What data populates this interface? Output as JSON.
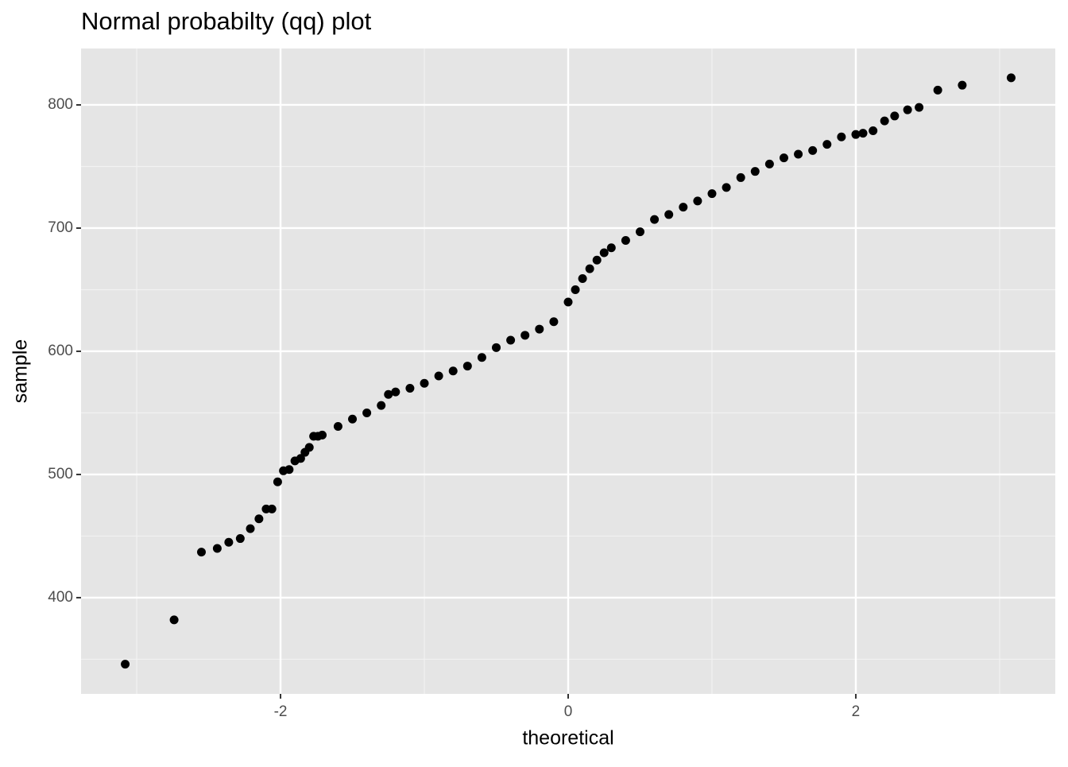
{
  "chart_data": {
    "type": "scatter",
    "title": "Normal probabilty (qq) plot",
    "x_label": "theoretical",
    "y_label": "sample",
    "color": "#000000",
    "x": [
      -3.08,
      -2.74,
      -2.55,
      -2.44,
      -2.36,
      -2.28,
      -2.21,
      -2.15,
      -2.1,
      -2.06,
      -2.02,
      -1.98,
      -1.94,
      -1.9,
      -1.86,
      -1.83,
      -1.8,
      -1.77,
      -1.74,
      -1.71,
      -1.6,
      -1.5,
      -1.4,
      -1.3,
      -1.25,
      -1.2,
      -1.1,
      -1.0,
      -0.9,
      -0.8,
      -0.7,
      -0.6,
      -0.5,
      -0.4,
      -0.3,
      -0.2,
      -0.1,
      0.0,
      0.05,
      0.1,
      0.15,
      0.2,
      0.25,
      0.3,
      0.4,
      0.5,
      0.6,
      0.7,
      0.8,
      0.9,
      1.0,
      1.1,
      1.2,
      1.3,
      1.4,
      1.5,
      1.6,
      1.7,
      1.8,
      1.9,
      2.0,
      2.05,
      2.12,
      2.2,
      2.27,
      2.36,
      2.44,
      2.57,
      2.74,
      3.08
    ],
    "y": [
      346,
      382,
      437,
      440,
      445,
      448,
      456,
      464,
      472,
      472,
      494,
      503,
      504,
      511,
      513,
      518,
      522,
      531,
      531,
      532,
      539,
      545,
      550,
      556,
      565,
      567,
      570,
      574,
      580,
      584,
      588,
      595,
      603,
      609,
      613,
      618,
      624,
      640,
      650,
      659,
      667,
      674,
      680,
      684,
      690,
      697,
      707,
      711,
      717,
      722,
      728,
      733,
      741,
      746,
      752,
      757,
      760,
      763,
      768,
      774,
      776,
      777,
      779,
      787,
      791,
      796,
      798,
      812,
      816,
      822
    ],
    "xlim": [
      -3.387,
      3.387
    ],
    "ylim": [
      321.9,
      845.8
    ],
    "xticks": [
      -2,
      0,
      2
    ],
    "yticks": [
      400,
      500,
      600,
      700,
      800
    ],
    "x_minor_grid": [
      -3,
      -1,
      1,
      3
    ],
    "y_minor_grid": [
      350,
      450,
      550,
      650,
      750
    ],
    "grid": true
  }
}
